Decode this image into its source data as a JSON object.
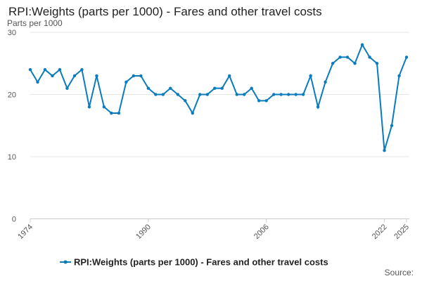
{
  "chart_data": {
    "type": "line",
    "title": "RPI:Weights (parts per 1000) - Fares and other travel costs",
    "ylabel": "Parts per 1000",
    "xlabel": "",
    "source_label": "Source:",
    "ylim": [
      0,
      30
    ],
    "xlim": [
      1974,
      2025
    ],
    "y_ticks": [
      "0",
      "10",
      "20",
      "30"
    ],
    "x_ticks": [
      "1974",
      "1990",
      "2006",
      "2022",
      "2025"
    ],
    "grid": true,
    "legend_position": "bottom",
    "series": [
      {
        "name": "RPI:Weights (parts per 1000) - Fares and other travel costs",
        "color": "#0a7bbd",
        "x": [
          1974,
          1975,
          1976,
          1977,
          1978,
          1979,
          1980,
          1981,
          1982,
          1983,
          1984,
          1985,
          1986,
          1987,
          1988,
          1989,
          1990,
          1991,
          1992,
          1993,
          1994,
          1995,
          1996,
          1997,
          1998,
          1999,
          2000,
          2001,
          2002,
          2003,
          2004,
          2005,
          2006,
          2007,
          2008,
          2009,
          2010,
          2011,
          2012,
          2013,
          2014,
          2015,
          2016,
          2017,
          2018,
          2019,
          2020,
          2021,
          2022,
          2023,
          2024,
          2025
        ],
        "values": [
          24,
          22,
          24,
          23,
          24,
          21,
          23,
          24,
          18,
          23,
          18,
          17,
          17,
          22,
          23,
          23,
          21,
          20,
          20,
          21,
          20,
          19,
          17,
          20,
          20,
          21,
          21,
          23,
          20,
          20,
          21,
          19,
          19,
          20,
          20,
          20,
          20,
          20,
          23,
          18,
          22,
          25,
          26,
          26,
          25,
          28,
          26,
          25,
          11,
          15,
          23,
          26
        ]
      }
    ]
  }
}
